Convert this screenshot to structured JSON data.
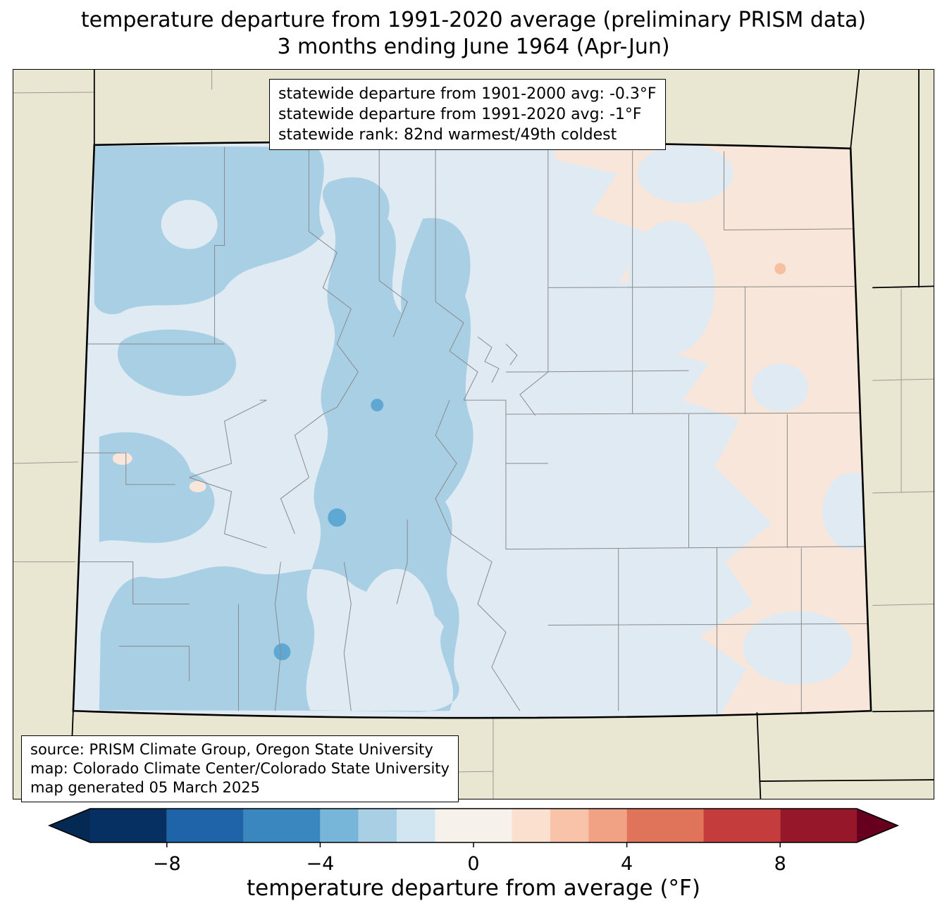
{
  "title": {
    "line1": "temperature departure from 1991-2020 average (preliminary PRISM data)",
    "line2": "3 months ending June 1964 (Apr-Jun)"
  },
  "stats_box": {
    "lines": [
      "statewide departure from 1901-2000 avg: -0.3°F",
      "statewide departure from 1991-2020 avg: -1°F",
      "statewide rank: 82nd warmest/49th coldest"
    ]
  },
  "credits_box": {
    "lines": [
      "source: PRISM Climate Group, Oregon State University",
      "map: Colorado Climate Center/Colorado State University",
      "map generated 05 March 2025"
    ]
  },
  "map": {
    "region": "Colorado",
    "palette": {
      "background": "#e9e7d2",
      "state_base": "#dfeaf3",
      "cool_medium": "#a9cfe5",
      "cool_strong": "#5fa8d3",
      "warm_light": "#f9e6da",
      "warm_medium": "#f5c0a0",
      "county_line": "#8a8a8a",
      "state_line": "#000000"
    }
  },
  "colorbar": {
    "label": "temperature departure from average (°F)",
    "range": [
      -10,
      10
    ],
    "levels": [
      -10,
      -8,
      -6,
      -4,
      -3,
      -2,
      -1,
      1,
      2,
      3,
      4,
      6,
      8,
      10
    ],
    "colors": [
      "#053061",
      "#1f63a8",
      "#3a87c0",
      "#77b5d9",
      "#a9cfe5",
      "#d2e6f1",
      "#f7f1ec",
      "#fbdfcf",
      "#f8c3a9",
      "#f2a284",
      "#e0745a",
      "#c43c3c",
      "#96172a"
    ],
    "under_color": "#042a54",
    "over_color": "#67001f",
    "ticks": [
      {
        "value": -8,
        "label": "−8"
      },
      {
        "value": -4,
        "label": "−4"
      },
      {
        "value": 0,
        "label": "0"
      },
      {
        "value": 4,
        "label": "4"
      },
      {
        "value": 8,
        "label": "8"
      }
    ]
  }
}
